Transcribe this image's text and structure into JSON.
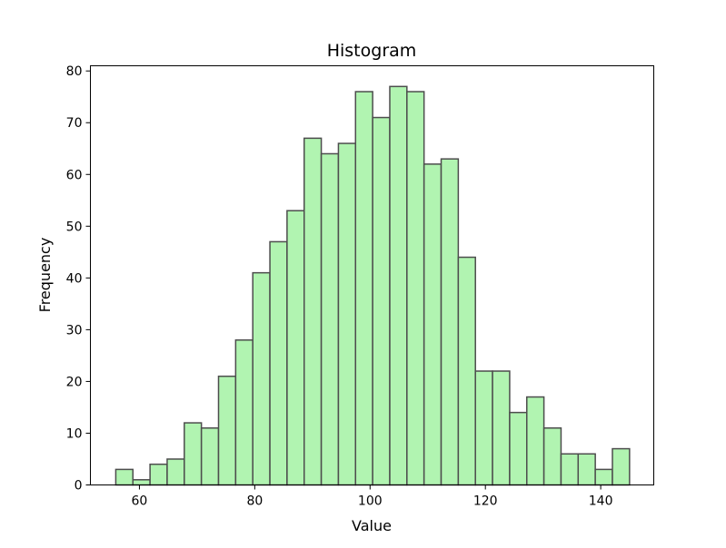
{
  "chart_data": {
    "type": "bar",
    "title": "Histogram",
    "xlabel": "Value",
    "ylabel": "Frequency",
    "bin_edges_start": 55.9,
    "bin_width": 2.97,
    "values": [
      3,
      1,
      4,
      5,
      12,
      11,
      21,
      28,
      41,
      47,
      53,
      67,
      64,
      66,
      76,
      71,
      77,
      76,
      62,
      63,
      44,
      22,
      22,
      14,
      17,
      11,
      6,
      6,
      3,
      7
    ],
    "xlim": [
      51.5,
      149.2
    ],
    "ylim": [
      0,
      81
    ],
    "xticks": [
      60,
      80,
      100,
      120,
      140
    ],
    "yticks": [
      0,
      10,
      20,
      30,
      40,
      50,
      60,
      70,
      80
    ],
    "grid": false,
    "bar_color": "#b1f4b1",
    "edge_color": "#4d4d4d"
  }
}
